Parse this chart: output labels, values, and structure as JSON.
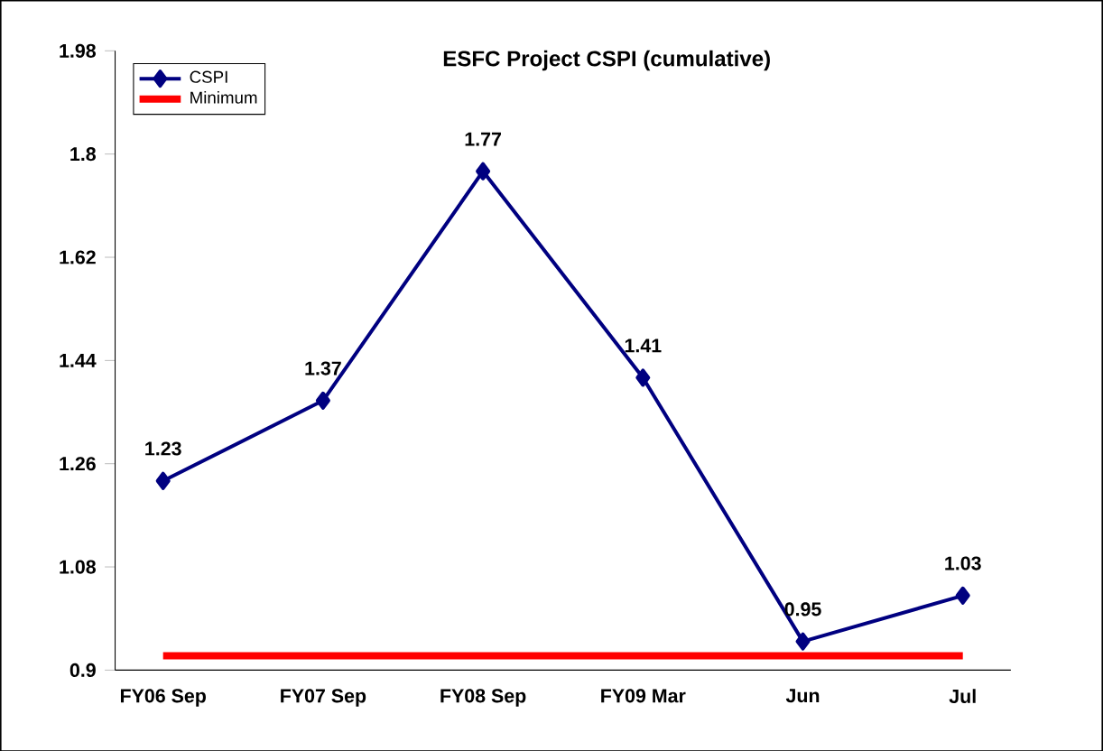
{
  "chart_data": {
    "type": "line",
    "title": "ESFC Project CSPI (cumulative)",
    "categories": [
      "FY06 Sep",
      "FY07 Sep",
      "FY08 Sep",
      "FY09 Mar",
      "Jun",
      "Jul"
    ],
    "series": [
      {
        "name": "CSPI",
        "color": "#000080",
        "values": [
          1.23,
          1.37,
          1.77,
          1.41,
          0.95,
          1.03
        ],
        "value_labels": [
          "1.23",
          "1.37",
          "1.77",
          "1.41",
          "0.95",
          "1.03"
        ],
        "marker": "diamond"
      },
      {
        "name": "Minimum",
        "color": "#ff0000",
        "values": [
          0.925,
          0.925,
          0.925,
          0.925,
          0.925,
          0.925
        ],
        "marker": "none"
      }
    ],
    "ylim": [
      0.9,
      1.98
    ],
    "yticks": [
      0.9,
      1.08,
      1.26,
      1.44,
      1.62,
      1.8,
      1.98
    ],
    "grid": false,
    "legend": "top left"
  }
}
